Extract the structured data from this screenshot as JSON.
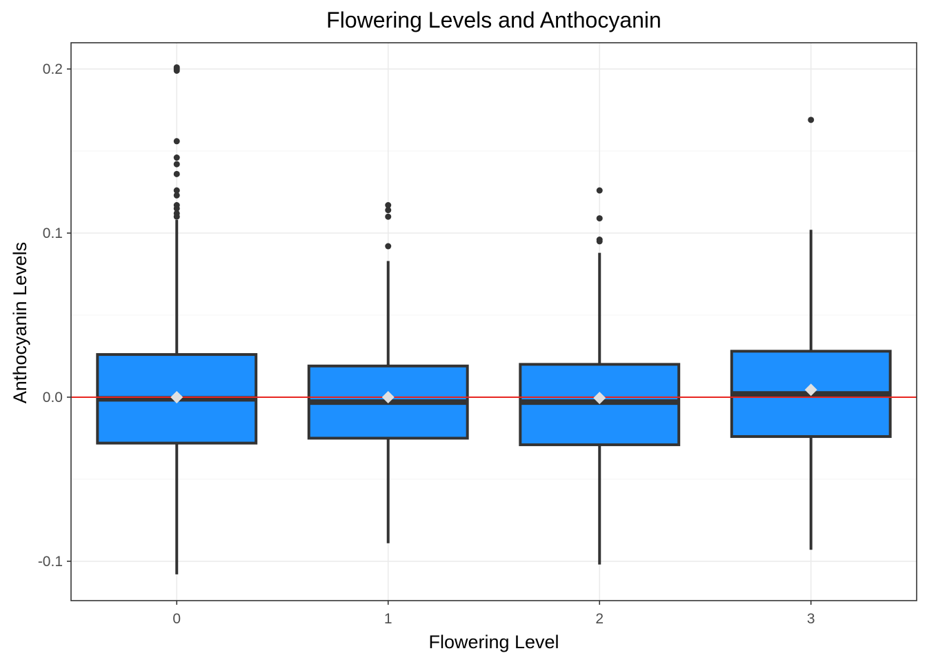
{
  "chart_data": {
    "type": "box",
    "title": "Flowering Levels and Anthocyanin",
    "xlabel": "Flowering Level",
    "ylabel": "Anthocyanin Levels",
    "categories": [
      "0",
      "1",
      "2",
      "3"
    ],
    "ylim": [
      -0.124,
      0.216
    ],
    "y_ticks": [
      -0.1,
      0.0,
      0.1,
      0.2
    ],
    "y_tick_labels": [
      "-0.1",
      "0.0",
      "0.1",
      "0.2"
    ],
    "grid": true,
    "reference_line": {
      "y": 0.0,
      "color": "#e8251e"
    },
    "box_fill": "#1e90ff",
    "box_stroke": "#333333",
    "mean_marker_color": "#e0e0e0",
    "boxes": [
      {
        "category": "0",
        "whisker_low": -0.108,
        "q1": -0.028,
        "median": -0.001,
        "q3": 0.026,
        "whisker_high": 0.108,
        "mean": 0.0,
        "outliers": [
          0.2,
          0.201,
          0.199,
          0.156,
          0.146,
          0.142,
          0.136,
          0.126,
          0.123,
          0.117,
          0.115,
          0.112,
          0.11
        ]
      },
      {
        "category": "1",
        "whisker_low": -0.089,
        "q1": -0.025,
        "median": -0.003,
        "q3": 0.019,
        "whisker_high": 0.083,
        "mean": 0.0,
        "outliers": [
          0.117,
          0.114,
          0.11,
          0.092
        ]
      },
      {
        "category": "2",
        "whisker_low": -0.102,
        "q1": -0.029,
        "median": -0.003,
        "q3": 0.02,
        "whisker_high": 0.088,
        "mean": -0.0005,
        "outliers": [
          0.126,
          0.109,
          0.096,
          0.095
        ]
      },
      {
        "category": "3",
        "whisker_low": -0.093,
        "q1": -0.024,
        "median": 0.002,
        "q3": 0.028,
        "whisker_high": 0.102,
        "mean": 0.0045,
        "outliers": [
          0.169
        ]
      }
    ]
  }
}
